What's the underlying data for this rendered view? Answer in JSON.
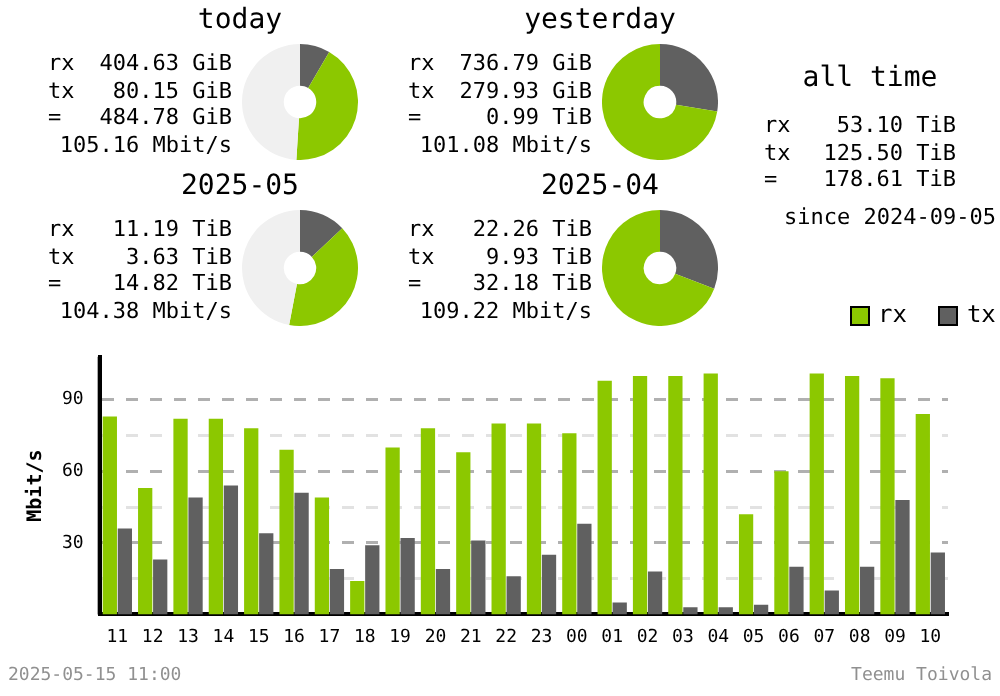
{
  "chart_data": [
    {
      "type": "donut",
      "title": "today",
      "categories": [
        null,
        null,
        null
      ],
      "values": [
        8.4,
        42.6,
        49
      ],
      "colors": [
        "#606060",
        "#8cc800",
        "#f0f0f0"
      ],
      "annotations": [
        "rx 404.63 GiB",
        "tx 80.15 GiB",
        "= 484.78 GiB",
        "105.16 Mbit/s"
      ]
    },
    {
      "type": "donut",
      "title": "yesterday",
      "categories": [
        null,
        null
      ],
      "values": [
        27.6,
        72.4
      ],
      "colors": [
        "#606060",
        "#8cc800"
      ],
      "annotations": [
        "rx 736.79 GiB",
        "tx 279.93 GiB",
        "= 0.99 TiB",
        "101.08 Mbit/s"
      ]
    },
    {
      "type": "other",
      "title": "all time",
      "annotations": [
        "rx 53.10 TiB",
        "tx 125.50 TiB",
        "= 178.61 TiB",
        "since 2024-09-05"
      ]
    },
    {
      "type": "donut",
      "title": "2025-05",
      "categories": [
        null,
        null,
        null
      ],
      "values": [
        13,
        40,
        47
      ],
      "colors": [
        "#606060",
        "#8cc800",
        "#f0f0f0"
      ],
      "annotations": [
        "rx 11.19 TiB",
        "tx 3.63 TiB",
        "= 14.82 TiB",
        "104.38 Mbit/s"
      ]
    },
    {
      "type": "donut",
      "title": "2025-04",
      "categories": [
        null,
        null
      ],
      "values": [
        30.8,
        69.2
      ],
      "colors": [
        "#606060",
        "#8cc800"
      ],
      "annotations": [
        "rx 22.26 TiB",
        "tx 9.93 TiB",
        "= 32.18 TiB",
        "109.22 Mbit/s"
      ]
    },
    {
      "type": "bar",
      "ylabel": "Mbit/s",
      "categories": [
        "11",
        "12",
        "13",
        "14",
        "15",
        "16",
        "17",
        "18",
        "19",
        "20",
        "21",
        "22",
        "23",
        "00",
        "01",
        "02",
        "03",
        "04",
        "05",
        "06",
        "07",
        "08",
        "09",
        "10"
      ],
      "series": [
        {
          "name": "rx",
          "color": "#8cc800",
          "values": [
            83,
            53,
            82,
            82,
            78,
            69,
            49,
            14,
            70,
            78,
            68,
            80,
            80,
            76,
            98,
            100,
            100,
            101,
            42,
            60,
            101,
            100,
            99,
            84
          ]
        },
        {
          "name": "tx",
          "color": "#606060",
          "values": [
            36,
            23,
            49,
            54,
            34,
            51,
            19,
            29,
            32,
            19,
            31,
            16,
            25,
            38,
            5,
            18,
            3,
            3,
            4,
            20,
            10,
            20,
            48,
            26
          ]
        }
      ],
      "ylim": [
        0,
        108
      ],
      "yticks": [
        {
          "value": 15,
          "label": null
        },
        30,
        {
          "value": 45,
          "label": null
        },
        60,
        {
          "value": 75,
          "label": null
        },
        90
      ],
      "grid": "y",
      "legend": "top right",
      "annotations": [
        "2025-05-15 11:00",
        "Teemu Toivola"
      ]
    }
  ]
}
